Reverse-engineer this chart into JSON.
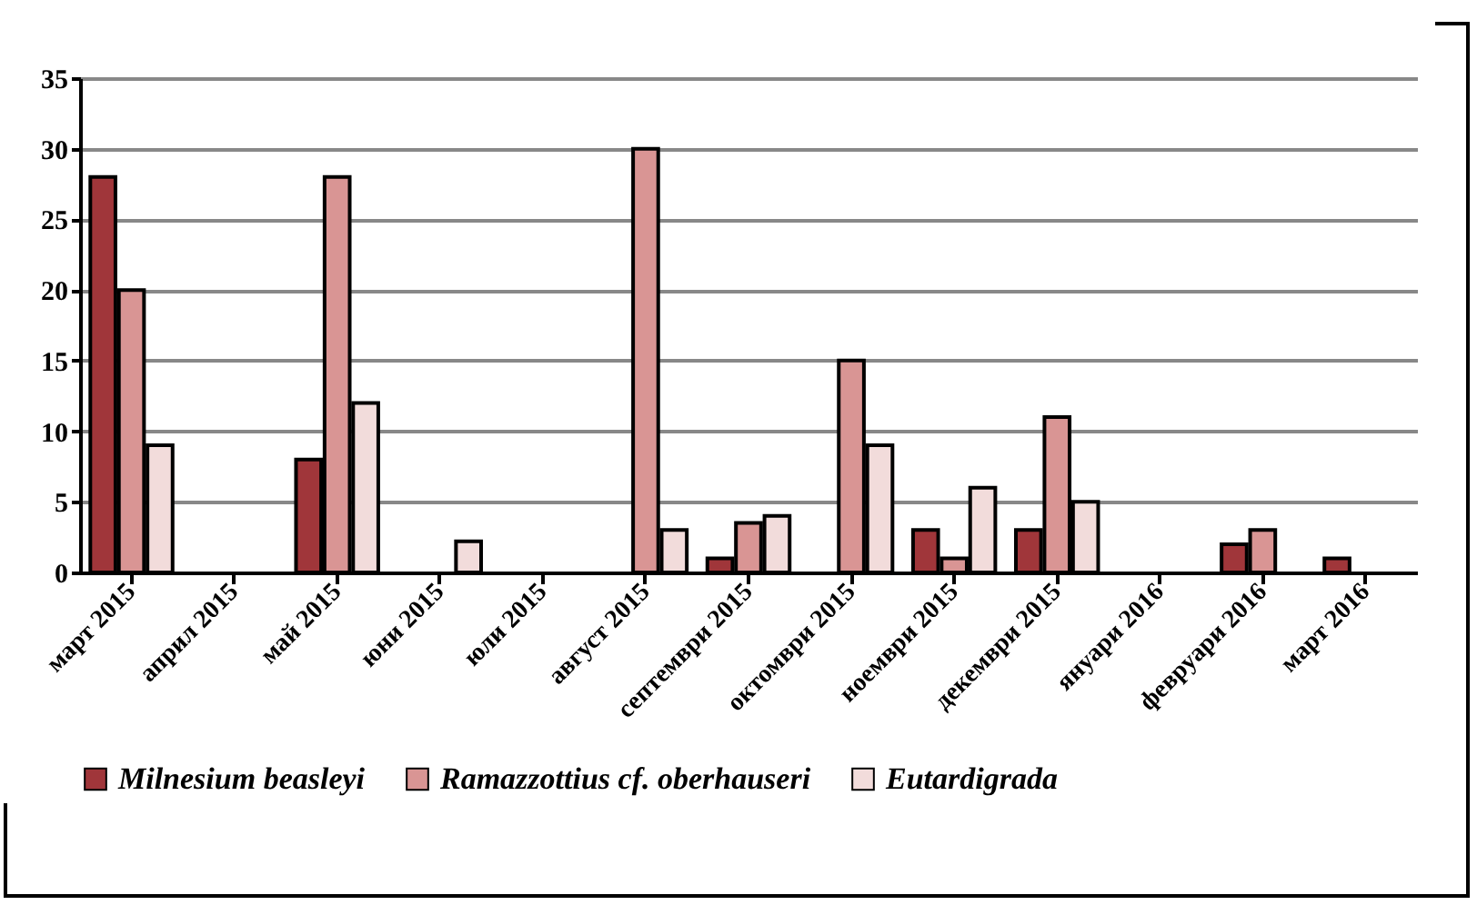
{
  "chart_data": {
    "type": "bar",
    "categories": [
      "март 2015",
      "април 2015",
      "май 2015",
      "юни 2015",
      "юли 2015",
      "август 2015",
      "септември 2015",
      "октомври 2015",
      "ноември 2015",
      "декември 2015",
      "януари 2016",
      "февруари 2016",
      "март 2016"
    ],
    "series": [
      {
        "name": "Milnesium beasleyi",
        "color": "#a0363a",
        "values": [
          28,
          0,
          8,
          0,
          0,
          0,
          1,
          0,
          3,
          3,
          0,
          2,
          1
        ]
      },
      {
        "name": "Ramazzottius cf. oberhauseri",
        "color": "#d99594",
        "values": [
          20,
          0,
          28,
          0,
          0,
          30,
          3.5,
          15,
          1,
          11,
          0,
          3,
          0
        ]
      },
      {
        "name": "Eutardigrada",
        "color": "#f2dcdb",
        "values": [
          9,
          0,
          12,
          2.2,
          0,
          3,
          4,
          9,
          6,
          5,
          0,
          0,
          0
        ]
      }
    ],
    "ylim": [
      0,
      35
    ],
    "yticks": [
      0,
      5,
      10,
      15,
      20,
      25,
      30,
      35
    ],
    "grid": "y",
    "legend": "bottom"
  }
}
